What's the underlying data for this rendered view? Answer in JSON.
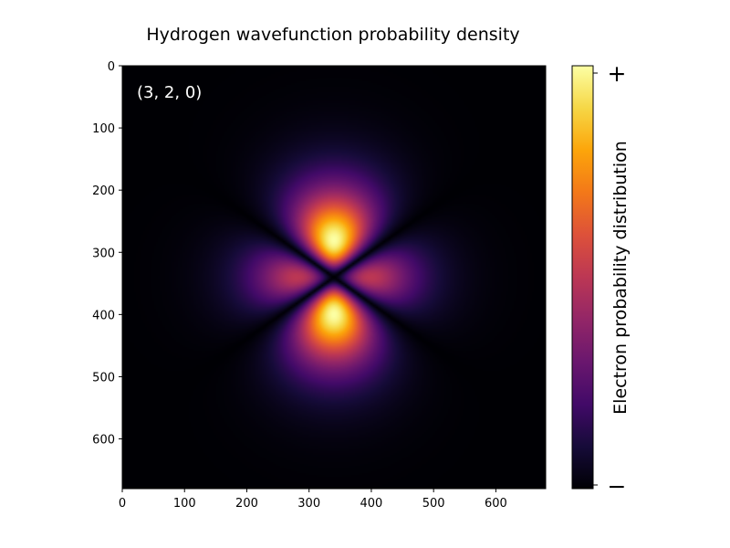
{
  "chart_data": {
    "type": "heatmap",
    "title": "Hydrogen wavefunction probability density",
    "annotation": "(3, 2, 0)",
    "colormap": "inferno",
    "xlim": [
      0,
      680
    ],
    "ylim": [
      680,
      0
    ],
    "x_ticks": [
      0,
      100,
      200,
      300,
      400,
      500,
      600
    ],
    "y_ticks": [
      0,
      100,
      200,
      300,
      400,
      500,
      600
    ],
    "quantum_numbers": {
      "n": 3,
      "l": 2,
      "m": 0
    },
    "colorbar": {
      "label": "Electron probability distribution",
      "max_label": "+",
      "min_label": "−"
    }
  }
}
